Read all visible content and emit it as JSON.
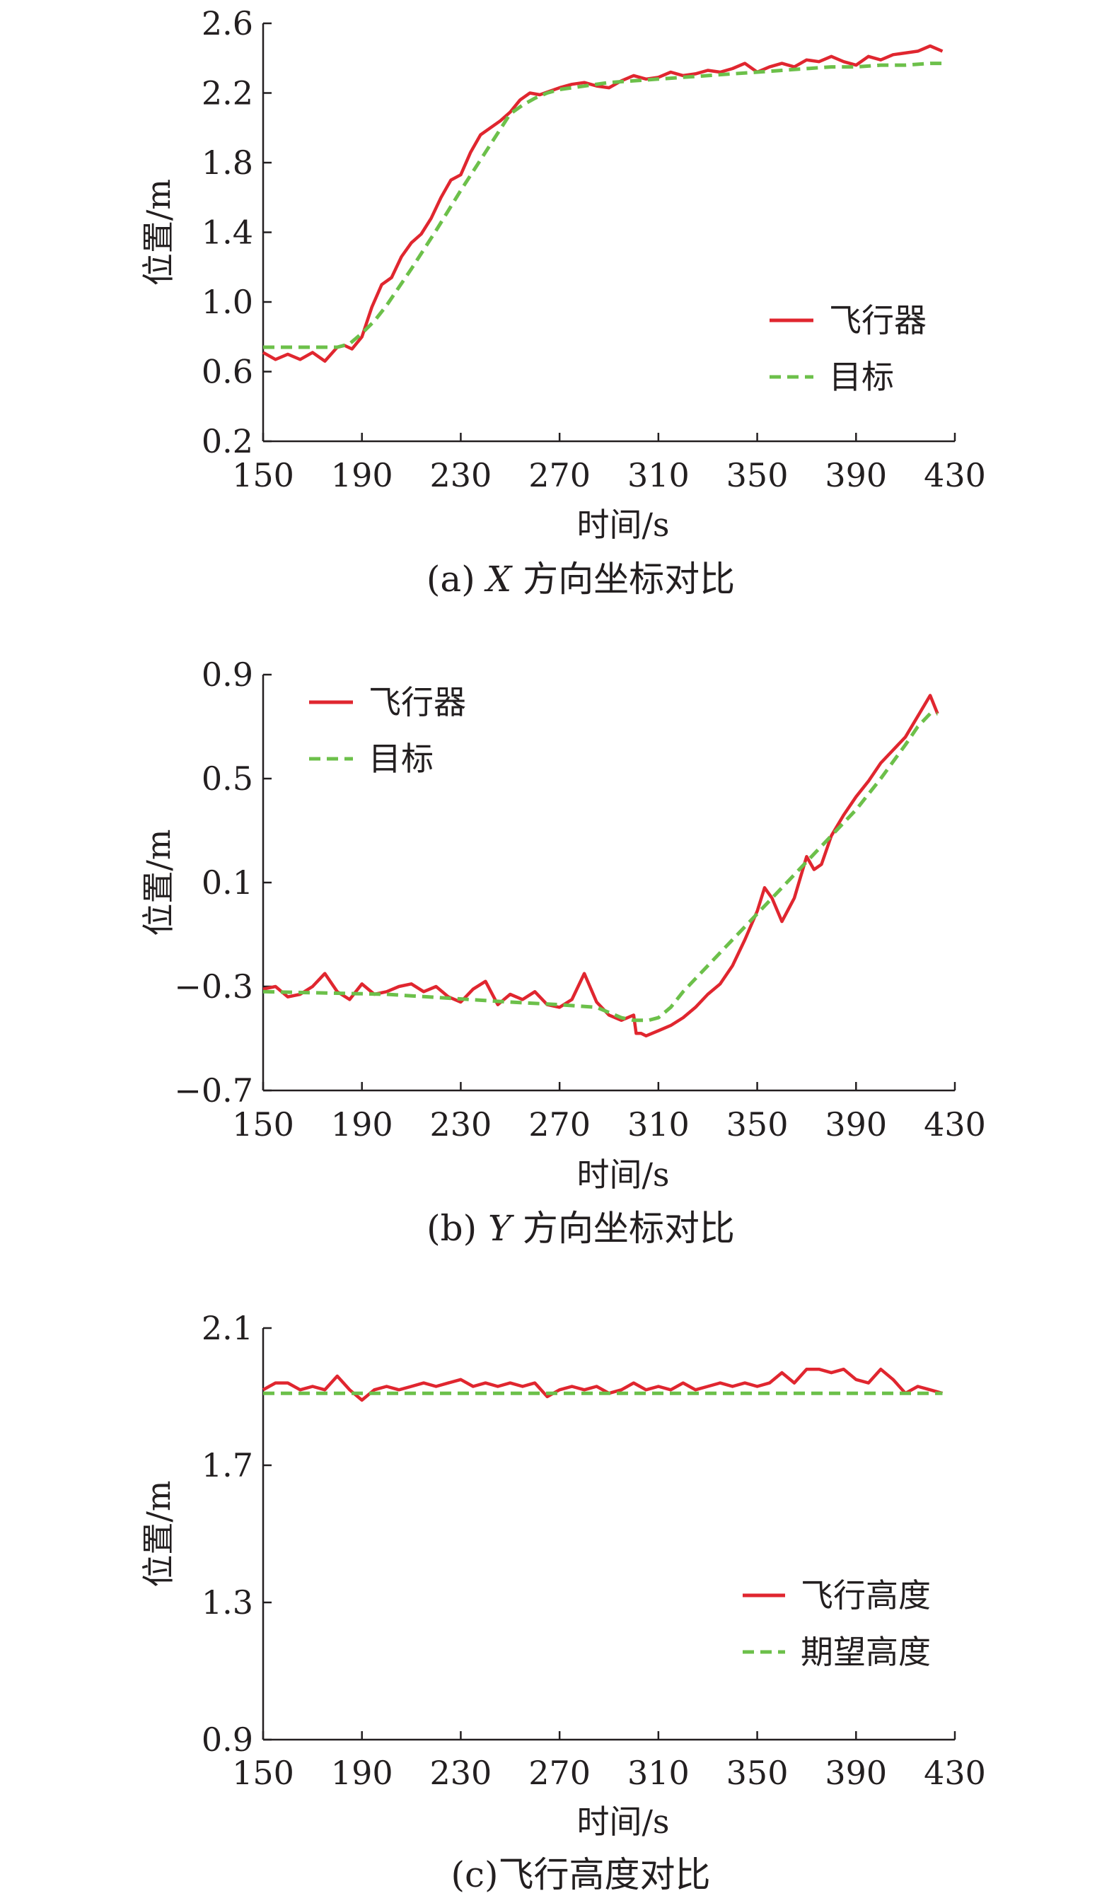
{
  "chart_data": [
    {
      "type": "line",
      "caption": "(a) X 方向坐标对比",
      "caption_parts": {
        "prefix": "(a) ",
        "italic": "X",
        "suffix": " 方向坐标对比"
      },
      "xlabel": "时间/s",
      "ylabel": "位置/m",
      "xlim": [
        150,
        430
      ],
      "ylim": [
        0.2,
        2.6
      ],
      "xticks": [
        150,
        190,
        230,
        270,
        310,
        350,
        390,
        430
      ],
      "yticks": [
        0.2,
        0.6,
        1.0,
        1.4,
        1.8,
        2.2,
        2.6
      ],
      "ytick_labels": [
        "0.2",
        "0.6",
        "1.0",
        "1.4",
        "1.8",
        "2.2",
        "2.6"
      ],
      "legend_position": "center-right",
      "series": [
        {
          "name": "飞行器",
          "color": "#e0262f",
          "dash": "solid",
          "x": [
            150,
            155,
            160,
            165,
            170,
            175,
            180,
            183,
            186,
            190,
            194,
            198,
            202,
            206,
            210,
            214,
            218,
            222,
            226,
            230,
            234,
            238,
            242,
            246,
            250,
            254,
            258,
            262,
            266,
            270,
            275,
            280,
            285,
            290,
            295,
            300,
            305,
            310,
            315,
            320,
            325,
            330,
            335,
            340,
            345,
            350,
            355,
            360,
            365,
            370,
            375,
            380,
            385,
            390,
            395,
            400,
            405,
            410,
            415,
            420,
            425
          ],
          "y": [
            0.71,
            0.67,
            0.7,
            0.67,
            0.71,
            0.66,
            0.74,
            0.75,
            0.73,
            0.8,
            0.97,
            1.1,
            1.14,
            1.26,
            1.34,
            1.39,
            1.48,
            1.6,
            1.7,
            1.73,
            1.86,
            1.96,
            2.0,
            2.04,
            2.09,
            2.16,
            2.2,
            2.19,
            2.21,
            2.23,
            2.25,
            2.26,
            2.24,
            2.23,
            2.27,
            2.3,
            2.28,
            2.29,
            2.32,
            2.3,
            2.31,
            2.33,
            2.32,
            2.34,
            2.37,
            2.32,
            2.35,
            2.37,
            2.35,
            2.39,
            2.38,
            2.41,
            2.38,
            2.36,
            2.41,
            2.39,
            2.42,
            2.43,
            2.44,
            2.47,
            2.44
          ]
        },
        {
          "name": "目标",
          "color": "#6cc04a",
          "dash": "dashed",
          "x": [
            150,
            180,
            185,
            190,
            195,
            200,
            210,
            220,
            230,
            240,
            250,
            255,
            260,
            265,
            270,
            280,
            290,
            300,
            310,
            320,
            330,
            340,
            350,
            360,
            370,
            380,
            390,
            400,
            410,
            420,
            425
          ],
          "y": [
            0.74,
            0.74,
            0.76,
            0.82,
            0.89,
            0.98,
            1.19,
            1.41,
            1.64,
            1.86,
            2.08,
            2.13,
            2.17,
            2.2,
            2.22,
            2.24,
            2.26,
            2.27,
            2.28,
            2.29,
            2.3,
            2.31,
            2.32,
            2.33,
            2.34,
            2.35,
            2.35,
            2.36,
            2.36,
            2.37,
            2.37
          ]
        }
      ]
    },
    {
      "type": "line",
      "caption": "(b) Y 方向坐标对比",
      "caption_parts": {
        "prefix": "(b) ",
        "italic": "Y",
        "suffix": " 方向坐标对比"
      },
      "xlabel": "时间/s",
      "ylabel": "位置/m",
      "xlim": [
        150,
        430
      ],
      "ylim": [
        -0.7,
        0.9
      ],
      "xticks": [
        150,
        190,
        230,
        270,
        310,
        350,
        390,
        430
      ],
      "yticks": [
        -0.7,
        -0.3,
        0.1,
        0.5,
        0.9
      ],
      "ytick_labels": [
        "−0.7",
        "−0.3",
        "0.1",
        "0.5",
        "0.9"
      ],
      "legend_position": "top-left",
      "series": [
        {
          "name": "飞行器",
          "color": "#e0262f",
          "dash": "solid",
          "x": [
            150,
            155,
            160,
            165,
            170,
            175,
            180,
            185,
            190,
            195,
            200,
            205,
            210,
            215,
            220,
            225,
            230,
            235,
            240,
            245,
            250,
            255,
            260,
            265,
            270,
            275,
            280,
            285,
            290,
            295,
            300,
            301,
            303,
            305,
            310,
            315,
            320,
            325,
            330,
            335,
            340,
            345,
            350,
            353,
            356,
            360,
            365,
            370,
            373,
            376,
            380,
            385,
            390,
            395,
            400,
            405,
            410,
            415,
            420,
            423
          ],
          "y": [
            -0.31,
            -0.3,
            -0.34,
            -0.33,
            -0.3,
            -0.25,
            -0.32,
            -0.35,
            -0.29,
            -0.33,
            -0.32,
            -0.3,
            -0.29,
            -0.32,
            -0.3,
            -0.34,
            -0.36,
            -0.31,
            -0.28,
            -0.37,
            -0.33,
            -0.35,
            -0.32,
            -0.37,
            -0.38,
            -0.35,
            -0.25,
            -0.36,
            -0.41,
            -0.43,
            -0.41,
            -0.48,
            -0.48,
            -0.49,
            -0.47,
            -0.45,
            -0.42,
            -0.38,
            -0.33,
            -0.29,
            -0.22,
            -0.12,
            -0.01,
            0.08,
            0.04,
            -0.05,
            0.04,
            0.2,
            0.15,
            0.17,
            0.28,
            0.36,
            0.43,
            0.49,
            0.56,
            0.61,
            0.66,
            0.74,
            0.82,
            0.75
          ]
        },
        {
          "name": "目标",
          "color": "#6cc04a",
          "dash": "dashed",
          "x": [
            150,
            200,
            250,
            270,
            285,
            295,
            300,
            303,
            306,
            310,
            315,
            320,
            330,
            340,
            350,
            360,
            370,
            380,
            390,
            400,
            410,
            415,
            420,
            423
          ],
          "y": [
            -0.32,
            -0.33,
            -0.36,
            -0.37,
            -0.38,
            -0.42,
            -0.43,
            -0.43,
            -0.43,
            -0.42,
            -0.38,
            -0.32,
            -0.22,
            -0.12,
            -0.02,
            0.08,
            0.18,
            0.28,
            0.38,
            0.5,
            0.63,
            0.7,
            0.75,
            0.75
          ]
        }
      ]
    },
    {
      "type": "line",
      "caption": "(c)飞行高度对比",
      "caption_parts": {
        "prefix": "(c)飞行高度对比",
        "italic": "",
        "suffix": ""
      },
      "xlabel": "时间/s",
      "ylabel": "位置/m",
      "xlim": [
        150,
        430
      ],
      "ylim": [
        0.9,
        2.1
      ],
      "xticks": [
        150,
        190,
        230,
        270,
        310,
        350,
        390,
        430
      ],
      "yticks": [
        0.9,
        1.3,
        1.7,
        2.1
      ],
      "ytick_labels": [
        "0.9",
        "1.3",
        "1.7",
        "2.1"
      ],
      "legend_position": "center-right",
      "series": [
        {
          "name": "飞行高度",
          "color": "#e0262f",
          "dash": "solid",
          "x": [
            150,
            155,
            160,
            165,
            170,
            175,
            180,
            185,
            190,
            195,
            200,
            205,
            210,
            215,
            220,
            225,
            230,
            235,
            240,
            245,
            250,
            255,
            260,
            265,
            270,
            275,
            280,
            285,
            290,
            295,
            300,
            305,
            310,
            315,
            320,
            325,
            330,
            335,
            340,
            345,
            350,
            355,
            360,
            365,
            370,
            375,
            380,
            385,
            390,
            395,
            400,
            405,
            410,
            415,
            420,
            425
          ],
          "y": [
            1.92,
            1.94,
            1.94,
            1.92,
            1.93,
            1.92,
            1.96,
            1.92,
            1.89,
            1.92,
            1.93,
            1.92,
            1.93,
            1.94,
            1.93,
            1.94,
            1.95,
            1.93,
            1.94,
            1.93,
            1.94,
            1.93,
            1.94,
            1.9,
            1.92,
            1.93,
            1.92,
            1.93,
            1.91,
            1.92,
            1.94,
            1.92,
            1.93,
            1.92,
            1.94,
            1.92,
            1.93,
            1.94,
            1.93,
            1.94,
            1.93,
            1.94,
            1.97,
            1.94,
            1.98,
            1.98,
            1.97,
            1.98,
            1.95,
            1.94,
            1.98,
            1.95,
            1.91,
            1.93,
            1.92,
            1.91
          ]
        },
        {
          "name": "期望高度",
          "color": "#6cc04a",
          "dash": "dashed",
          "x": [
            150,
            425
          ],
          "y": [
            1.91,
            1.91
          ]
        }
      ]
    }
  ]
}
